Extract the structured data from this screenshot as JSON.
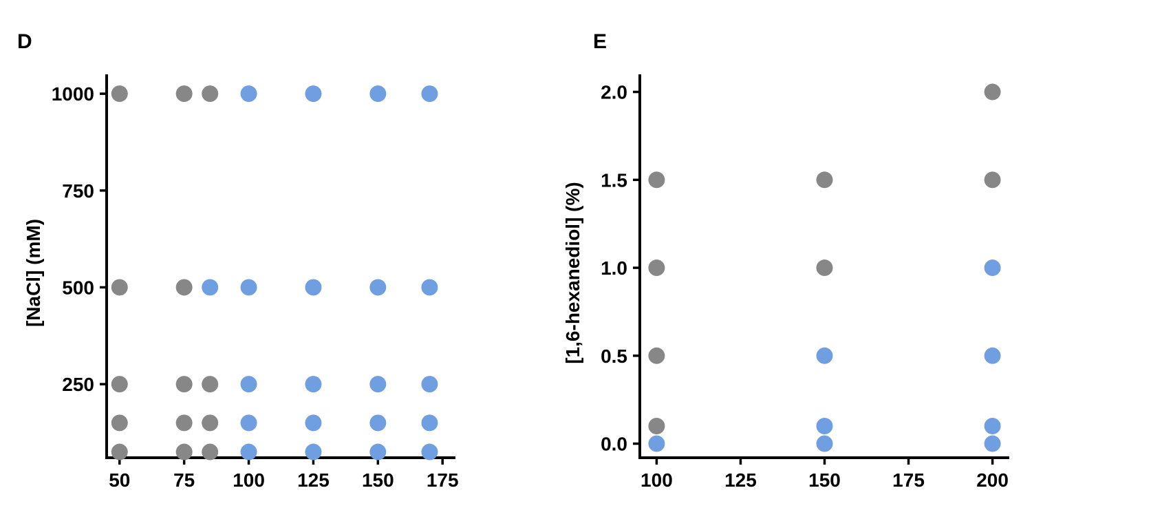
{
  "chart_data": [
    {
      "panel": "D",
      "type": "scatter",
      "title": "",
      "xlabel": "",
      "ylabel": "[NaCl] (mM)",
      "xlim": [
        45,
        180
      ],
      "ylim": [
        60,
        1050
      ],
      "xticks": [
        "50",
        "75",
        "100",
        "125",
        "150",
        "175"
      ],
      "yticks": [
        "250",
        "500",
        "750",
        "1000"
      ],
      "grid": false,
      "colors": {
        "gray": "#878787",
        "blue": "#6f9fe0"
      },
      "points": [
        {
          "x": 50,
          "y": 1000,
          "c": "gray"
        },
        {
          "x": 75,
          "y": 1000,
          "c": "gray"
        },
        {
          "x": 85,
          "y": 1000,
          "c": "gray"
        },
        {
          "x": 100,
          "y": 1000,
          "c": "blue"
        },
        {
          "x": 125,
          "y": 1000,
          "c": "blue"
        },
        {
          "x": 150,
          "y": 1000,
          "c": "blue"
        },
        {
          "x": 170,
          "y": 1000,
          "c": "blue"
        },
        {
          "x": 50,
          "y": 500,
          "c": "gray"
        },
        {
          "x": 75,
          "y": 500,
          "c": "gray"
        },
        {
          "x": 85,
          "y": 500,
          "c": "blue"
        },
        {
          "x": 100,
          "y": 500,
          "c": "blue"
        },
        {
          "x": 125,
          "y": 500,
          "c": "blue"
        },
        {
          "x": 150,
          "y": 500,
          "c": "blue"
        },
        {
          "x": 170,
          "y": 500,
          "c": "blue"
        },
        {
          "x": 50,
          "y": 250,
          "c": "gray"
        },
        {
          "x": 75,
          "y": 250,
          "c": "gray"
        },
        {
          "x": 85,
          "y": 250,
          "c": "gray"
        },
        {
          "x": 100,
          "y": 250,
          "c": "blue"
        },
        {
          "x": 125,
          "y": 250,
          "c": "blue"
        },
        {
          "x": 150,
          "y": 250,
          "c": "blue"
        },
        {
          "x": 170,
          "y": 250,
          "c": "blue"
        },
        {
          "x": 50,
          "y": 150,
          "c": "gray"
        },
        {
          "x": 75,
          "y": 150,
          "c": "gray"
        },
        {
          "x": 85,
          "y": 150,
          "c": "gray"
        },
        {
          "x": 100,
          "y": 150,
          "c": "blue"
        },
        {
          "x": 125,
          "y": 150,
          "c": "blue"
        },
        {
          "x": 150,
          "y": 150,
          "c": "blue"
        },
        {
          "x": 170,
          "y": 150,
          "c": "blue"
        },
        {
          "x": 50,
          "y": 75,
          "c": "gray"
        },
        {
          "x": 75,
          "y": 75,
          "c": "gray"
        },
        {
          "x": 85,
          "y": 75,
          "c": "gray"
        },
        {
          "x": 100,
          "y": 75,
          "c": "blue"
        },
        {
          "x": 125,
          "y": 75,
          "c": "blue"
        },
        {
          "x": 150,
          "y": 75,
          "c": "blue"
        },
        {
          "x": 170,
          "y": 75,
          "c": "blue"
        }
      ]
    },
    {
      "panel": "E",
      "type": "scatter",
      "title": "",
      "xlabel": "",
      "ylabel": "[1,6-hexanediol] (%)",
      "xlim": [
        95,
        205
      ],
      "ylim": [
        -0.08,
        2.1
      ],
      "xticks": [
        "100",
        "125",
        "150",
        "175",
        "200"
      ],
      "yticks": [
        "0.0",
        "0.5",
        "1.0",
        "1.5",
        "2.0"
      ],
      "grid": false,
      "colors": {
        "gray": "#878787",
        "blue": "#6f9fe0"
      },
      "points": [
        {
          "x": 200,
          "y": 2.0,
          "c": "gray"
        },
        {
          "x": 100,
          "y": 1.5,
          "c": "gray"
        },
        {
          "x": 150,
          "y": 1.5,
          "c": "gray"
        },
        {
          "x": 200,
          "y": 1.5,
          "c": "gray"
        },
        {
          "x": 100,
          "y": 1.0,
          "c": "gray"
        },
        {
          "x": 150,
          "y": 1.0,
          "c": "gray"
        },
        {
          "x": 200,
          "y": 1.0,
          "c": "blue"
        },
        {
          "x": 100,
          "y": 0.5,
          "c": "gray"
        },
        {
          "x": 150,
          "y": 0.5,
          "c": "blue"
        },
        {
          "x": 200,
          "y": 0.5,
          "c": "blue"
        },
        {
          "x": 100,
          "y": 0.1,
          "c": "gray"
        },
        {
          "x": 150,
          "y": 0.1,
          "c": "blue"
        },
        {
          "x": 200,
          "y": 0.1,
          "c": "blue"
        },
        {
          "x": 100,
          "y": 0.0,
          "c": "blue"
        },
        {
          "x": 150,
          "y": 0.0,
          "c": "blue"
        },
        {
          "x": 200,
          "y": 0.0,
          "c": "blue"
        }
      ]
    }
  ]
}
